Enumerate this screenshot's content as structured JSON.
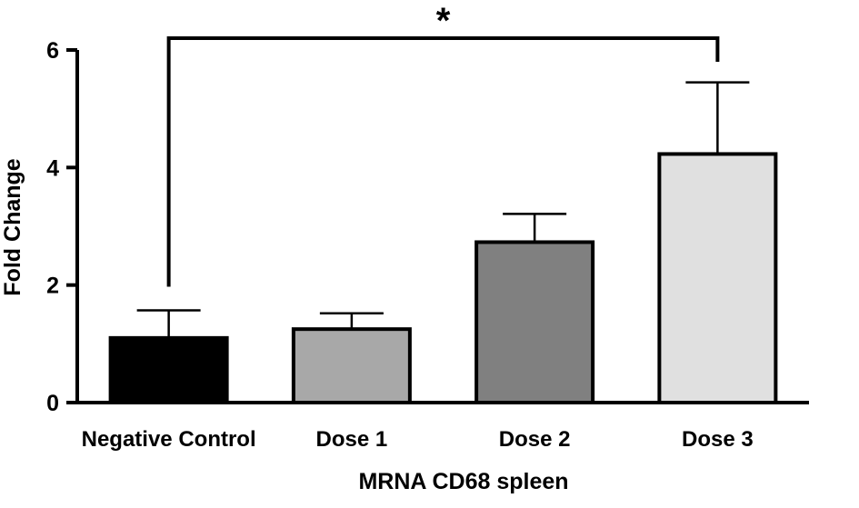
{
  "chart_data": {
    "type": "bar",
    "title": "",
    "xlabel": "MRNA CD68 spleen",
    "ylabel": "Fold Change",
    "categories": [
      "Negative Control",
      "Dose 1",
      "Dose 2",
      "Dose 3"
    ],
    "values": [
      1.1,
      1.25,
      2.73,
      4.23
    ],
    "error_upper": [
      0.47,
      0.27,
      0.48,
      1.22
    ],
    "bar_colors": [
      "#000000",
      "#a8a8a8",
      "#808080",
      "#e0e0e0"
    ],
    "yticks": [
      0,
      2,
      4,
      6
    ],
    "ylim": [
      0,
      6
    ],
    "grid": false,
    "legend": "none",
    "significance": {
      "from_category": 0,
      "to_category": 3,
      "label": "*"
    }
  }
}
